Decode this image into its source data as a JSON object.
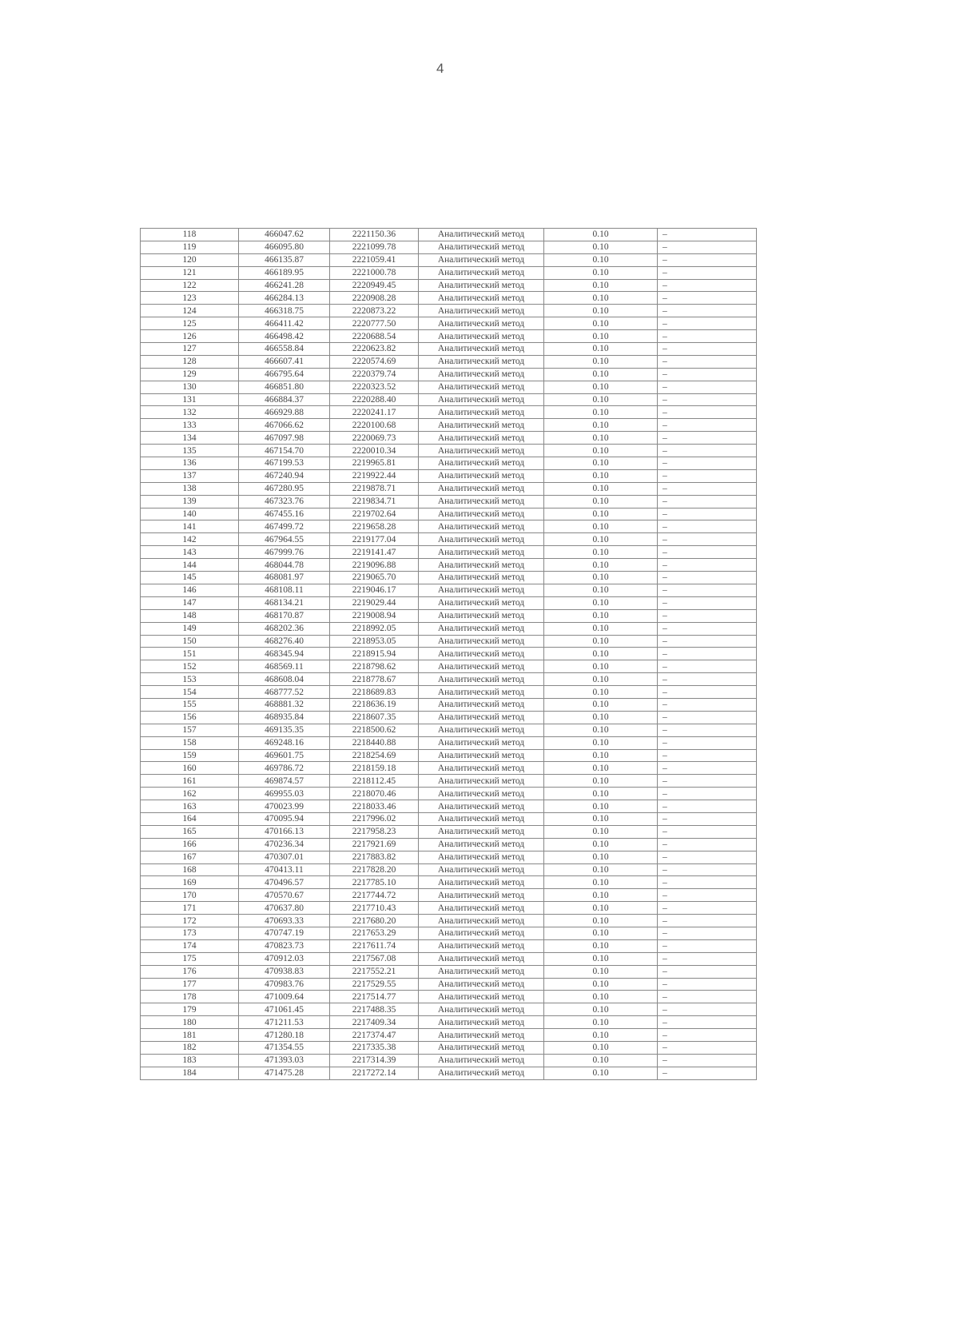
{
  "page_number": "4",
  "method": "Аналитический метод",
  "accuracy": "0.10",
  "note": "–",
  "rows": [
    [
      "118",
      "466047.62",
      "2221150.36"
    ],
    [
      "119",
      "466095.80",
      "2221099.78"
    ],
    [
      "120",
      "466135.87",
      "2221059.41"
    ],
    [
      "121",
      "466189.95",
      "2221000.78"
    ],
    [
      "122",
      "466241.28",
      "2220949.45"
    ],
    [
      "123",
      "466284.13",
      "2220908.28"
    ],
    [
      "124",
      "466318.75",
      "2220873.22"
    ],
    [
      "125",
      "466411.42",
      "2220777.50"
    ],
    [
      "126",
      "466498.42",
      "2220688.54"
    ],
    [
      "127",
      "466558.84",
      "2220623.82"
    ],
    [
      "128",
      "466607.41",
      "2220574.69"
    ],
    [
      "129",
      "466795.64",
      "2220379.74"
    ],
    [
      "130",
      "466851.80",
      "2220323.52"
    ],
    [
      "131",
      "466884.37",
      "2220288.40"
    ],
    [
      "132",
      "466929.88",
      "2220241.17"
    ],
    [
      "133",
      "467066.62",
      "2220100.68"
    ],
    [
      "134",
      "467097.98",
      "2220069.73"
    ],
    [
      "135",
      "467154.70",
      "2220010.34"
    ],
    [
      "136",
      "467199.53",
      "2219965.81"
    ],
    [
      "137",
      "467240.94",
      "2219922.44"
    ],
    [
      "138",
      "467280.95",
      "2219878.71"
    ],
    [
      "139",
      "467323.76",
      "2219834.71"
    ],
    [
      "140",
      "467455.16",
      "2219702.64"
    ],
    [
      "141",
      "467499.72",
      "2219658.28"
    ],
    [
      "142",
      "467964.55",
      "2219177.04"
    ],
    [
      "143",
      "467999.76",
      "2219141.47"
    ],
    [
      "144",
      "468044.78",
      "2219096.88"
    ],
    [
      "145",
      "468081.97",
      "2219065.70"
    ],
    [
      "146",
      "468108.11",
      "2219046.17"
    ],
    [
      "147",
      "468134.21",
      "2219029.44"
    ],
    [
      "148",
      "468170.87",
      "2219008.94"
    ],
    [
      "149",
      "468202.36",
      "2218992.05"
    ],
    [
      "150",
      "468276.40",
      "2218953.05"
    ],
    [
      "151",
      "468345.94",
      "2218915.94"
    ],
    [
      "152",
      "468569.11",
      "2218798.62"
    ],
    [
      "153",
      "468608.04",
      "2218778.67"
    ],
    [
      "154",
      "468777.52",
      "2218689.83"
    ],
    [
      "155",
      "468881.32",
      "2218636.19"
    ],
    [
      "156",
      "468935.84",
      "2218607.35"
    ],
    [
      "157",
      "469135.35",
      "2218500.62"
    ],
    [
      "158",
      "469248.16",
      "2218440.88"
    ],
    [
      "159",
      "469601.75",
      "2218254.69"
    ],
    [
      "160",
      "469786.72",
      "2218159.18"
    ],
    [
      "161",
      "469874.57",
      "2218112.45"
    ],
    [
      "162",
      "469955.03",
      "2218070.46"
    ],
    [
      "163",
      "470023.99",
      "2218033.46"
    ],
    [
      "164",
      "470095.94",
      "2217996.02"
    ],
    [
      "165",
      "470166.13",
      "2217958.23"
    ],
    [
      "166",
      "470236.34",
      "2217921.69"
    ],
    [
      "167",
      "470307.01",
      "2217883.82"
    ],
    [
      "168",
      "470413.11",
      "2217828.20"
    ],
    [
      "169",
      "470496.57",
      "2217785.10"
    ],
    [
      "170",
      "470570.67",
      "2217744.72"
    ],
    [
      "171",
      "470637.80",
      "2217710.43"
    ],
    [
      "172",
      "470693.33",
      "2217680.20"
    ],
    [
      "173",
      "470747.19",
      "2217653.29"
    ],
    [
      "174",
      "470823.73",
      "2217611.74"
    ],
    [
      "175",
      "470912.03",
      "2217567.08"
    ],
    [
      "176",
      "470938.83",
      "2217552.21"
    ],
    [
      "177",
      "470983.76",
      "2217529.55"
    ],
    [
      "178",
      "471009.64",
      "2217514.77"
    ],
    [
      "179",
      "471061.45",
      "2217488.35"
    ],
    [
      "180",
      "471211.53",
      "2217409.34"
    ],
    [
      "181",
      "471280.18",
      "2217374.47"
    ],
    [
      "182",
      "471354.55",
      "2217335.38"
    ],
    [
      "183",
      "471393.03",
      "2217314.39"
    ],
    [
      "184",
      "471475.28",
      "2217272.14"
    ]
  ]
}
